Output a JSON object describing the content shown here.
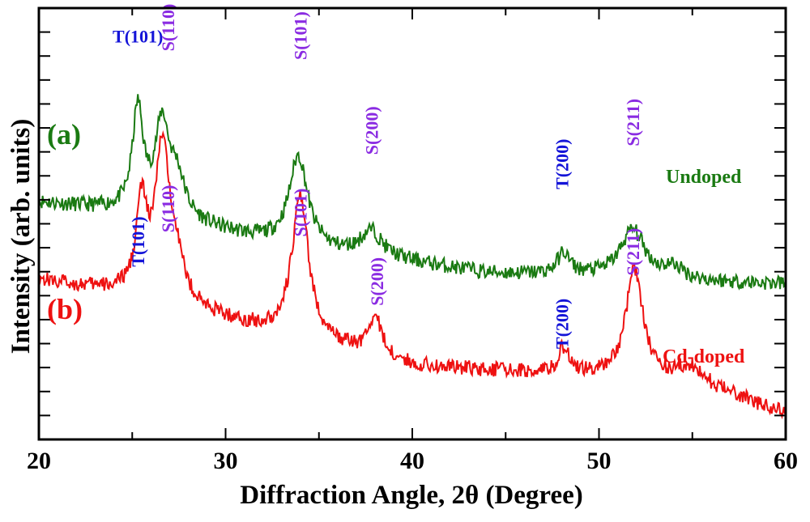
{
  "chart_data": {
    "type": "line",
    "xlabel": "Diffraction Angle, 2θ (Degree)",
    "ylabel": "Intensity (arb. units)",
    "xlim": [
      20,
      60
    ],
    "ylim": [
      0,
      100
    ],
    "x_ticks": [
      "20",
      "30",
      "40",
      "50",
      "60"
    ],
    "y_ticks_count": 17,
    "grid": false,
    "colors": {
      "undoped": "#1a7a12",
      "cd_doped": "#ee1111",
      "tetragonal": "#1414d8",
      "sulfide": "#8a2be2"
    },
    "series": [
      {
        "name": "Undoped",
        "tag": "(a)",
        "color": "#1a7a12",
        "baseline": [
          [
            20,
            55
          ],
          [
            24,
            53
          ],
          [
            28,
            50
          ],
          [
            32,
            46
          ],
          [
            36,
            43
          ],
          [
            40,
            41
          ],
          [
            44,
            38.5
          ],
          [
            48,
            38
          ],
          [
            52,
            37.5
          ],
          [
            56,
            36.5
          ],
          [
            60,
            36
          ]
        ],
        "peaks": [
          {
            "x": 25.3,
            "h": 24,
            "w": 0.35
          },
          {
            "x": 26.6,
            "h": 21,
            "w": 0.45
          },
          {
            "x": 27.4,
            "h": 9,
            "w": 0.5
          },
          {
            "x": 33.9,
            "h": 21,
            "w": 0.6
          },
          {
            "x": 37.8,
            "h": 6,
            "w": 0.7
          },
          {
            "x": 48.1,
            "h": 5,
            "w": 0.4
          },
          {
            "x": 51.8,
            "h": 11,
            "w": 0.8
          },
          {
            "x": 54.0,
            "h": 2.5,
            "w": 0.6
          }
        ],
        "noise": 1.1
      },
      {
        "name": "Cd-doped",
        "tag": "(b)",
        "color": "#ee1111",
        "baseline": [
          [
            20,
            37
          ],
          [
            24,
            34
          ],
          [
            28,
            30
          ],
          [
            32,
            25
          ],
          [
            36,
            21
          ],
          [
            40,
            17
          ],
          [
            44,
            16
          ],
          [
            48,
            15
          ],
          [
            52,
            14.5
          ],
          [
            56,
            12
          ],
          [
            60,
            6
          ]
        ],
        "peaks": [
          {
            "x": 25.5,
            "h": 21,
            "w": 0.35
          },
          {
            "x": 26.6,
            "h": 34,
            "w": 0.45
          },
          {
            "x": 27.3,
            "h": 10,
            "w": 0.5
          },
          {
            "x": 34.0,
            "h": 33,
            "w": 0.55
          },
          {
            "x": 38.0,
            "h": 9,
            "w": 0.45
          },
          {
            "x": 48.1,
            "h": 6,
            "w": 0.35
          },
          {
            "x": 51.9,
            "h": 25,
            "w": 0.55
          },
          {
            "x": 54.8,
            "h": 4,
            "w": 0.7
          }
        ],
        "noise": 1.1
      }
    ],
    "annotations": [
      {
        "text": "T(101)",
        "series": "Undoped",
        "phase": "tetragonal",
        "x": 25.3,
        "y": 92,
        "rotate": false
      },
      {
        "text": "S(110)",
        "series": "Undoped",
        "phase": "sulfide",
        "x": 26.9,
        "y": 90,
        "rotate": true
      },
      {
        "text": "S(101)",
        "series": "Undoped",
        "phase": "sulfide",
        "x": 34.0,
        "y": 88,
        "rotate": true
      },
      {
        "text": "S(200)",
        "series": "Undoped",
        "phase": "sulfide",
        "x": 37.8,
        "y": 66,
        "rotate": true
      },
      {
        "text": "T(200)",
        "series": "Undoped",
        "phase": "tetragonal",
        "x": 48.0,
        "y": 58,
        "rotate": true
      },
      {
        "text": "S(211)",
        "series": "Undoped",
        "phase": "sulfide",
        "x": 51.8,
        "y": 68,
        "rotate": true
      },
      {
        "text": "T(101)",
        "series": "Cd-doped",
        "phase": "tetragonal",
        "x": 25.3,
        "y": 40,
        "rotate": true
      },
      {
        "text": "S(110)",
        "series": "Cd-doped",
        "phase": "sulfide",
        "x": 26.9,
        "y": 48,
        "rotate": true
      },
      {
        "text": "S(101)",
        "series": "Cd-doped",
        "phase": "sulfide",
        "x": 34.0,
        "y": 47,
        "rotate": true
      },
      {
        "text": "S(200)",
        "series": "Cd-doped",
        "phase": "sulfide",
        "x": 38.1,
        "y": 31,
        "rotate": true
      },
      {
        "text": "T(200)",
        "series": "Cd-doped",
        "phase": "tetragonal",
        "x": 48.0,
        "y": 21,
        "rotate": true
      },
      {
        "text": "S(211)",
        "series": "Cd-doped",
        "phase": "sulfide",
        "x": 51.8,
        "y": 38,
        "rotate": true
      }
    ]
  }
}
